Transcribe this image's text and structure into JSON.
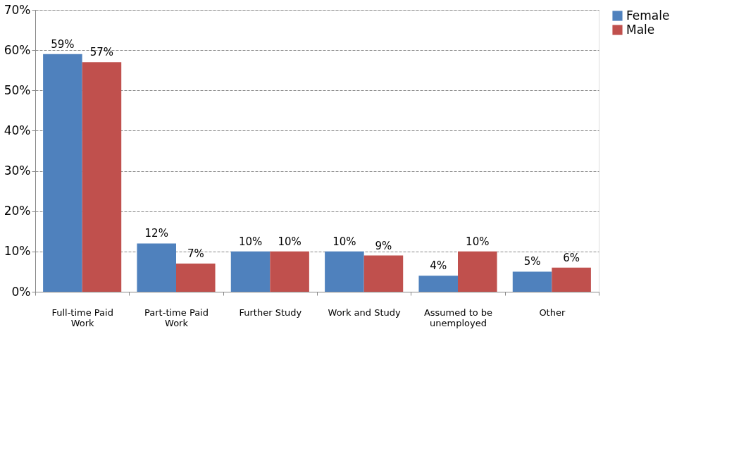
{
  "chart_data": {
    "type": "bar",
    "categories": [
      "Full-time Paid Work",
      "Part-time Paid Work",
      "Further Study",
      "Work and Study",
      "Assumed to be unemployed",
      "Other"
    ],
    "series": [
      {
        "name": "Female",
        "color": "#4f81bd",
        "values": [
          59,
          12,
          10,
          10,
          4,
          5
        ]
      },
      {
        "name": "Male",
        "color": "#c0504d",
        "values": [
          57,
          7,
          10,
          9,
          10,
          6
        ]
      }
    ],
    "ylim": [
      0,
      70
    ],
    "yticks": [
      {
        "value": 0,
        "label": "0%"
      },
      {
        "value": 10,
        "label": "10%"
      },
      {
        "value": 20,
        "label": "20%"
      },
      {
        "value": 30,
        "label": "30%"
      },
      {
        "value": 40,
        "label": "40%"
      },
      {
        "value": 50,
        "label": "50%"
      },
      {
        "value": 60,
        "label": "60%"
      },
      {
        "value": 70,
        "label": "70%"
      }
    ],
    "value_labels": [
      [
        "59%",
        "12%",
        "10%",
        "10%",
        "4%",
        "5%"
      ],
      [
        "57%",
        "7%",
        "10%",
        "9%",
        "10%",
        "6%"
      ]
    ],
    "grid": "y",
    "legend": "right"
  }
}
